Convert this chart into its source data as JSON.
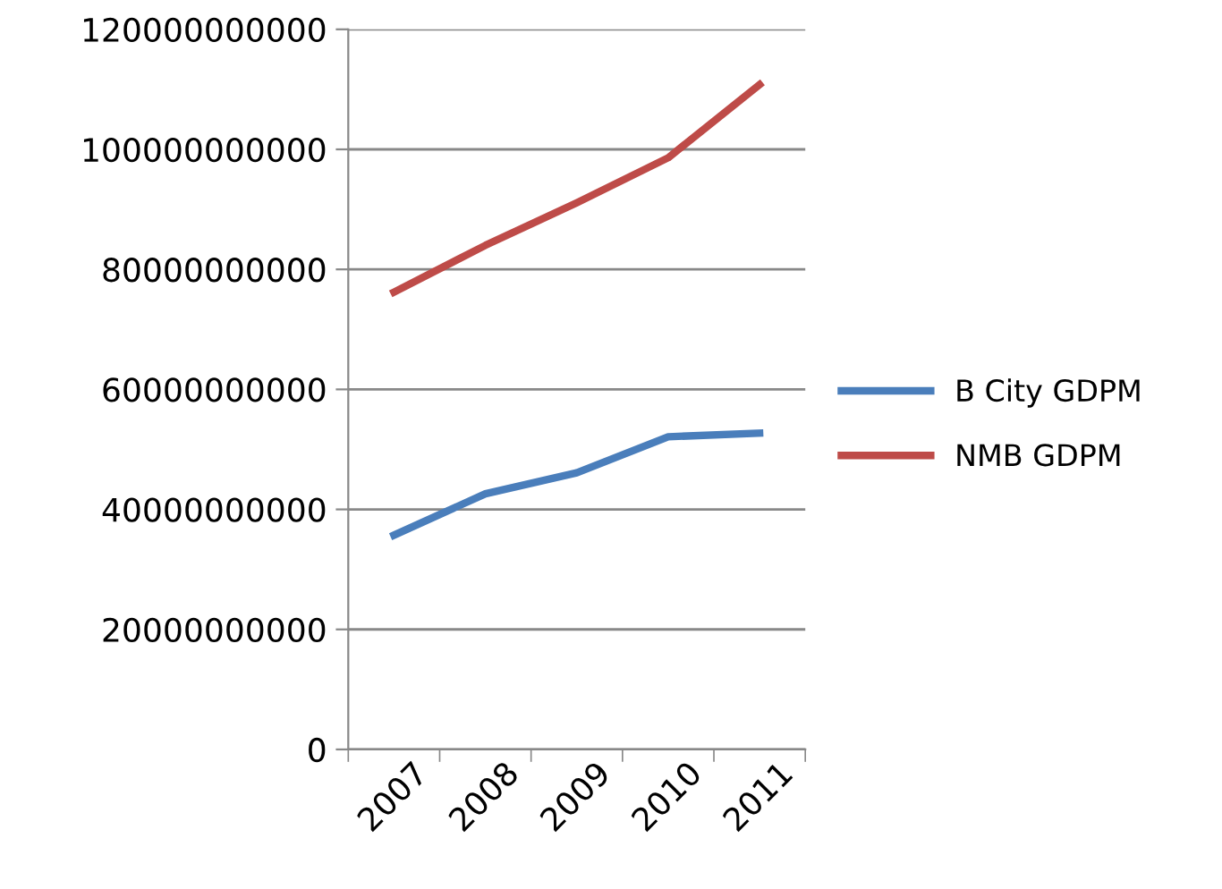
{
  "chart_data": {
    "type": "line",
    "categories": [
      "2007",
      "2008",
      "2009",
      "2010",
      "2011"
    ],
    "series": [
      {
        "name": "B City GDPM",
        "color": "#4a7ebb",
        "values": [
          35700000000,
          42600000000,
          46100000000,
          52100000000,
          52700000000
        ]
      },
      {
        "name": "NMB GDPM",
        "color": "#be4b48",
        "values": [
          76200000000,
          84000000000,
          91100000000,
          98600000000,
          110800000000
        ]
      }
    ],
    "ylim": [
      0,
      120000000000
    ],
    "yticks": [
      0,
      20000000000,
      40000000000,
      60000000000,
      80000000000,
      100000000000,
      120000000000
    ],
    "grid": "y",
    "legend": "right",
    "marker": "none",
    "line_style": "solid"
  }
}
